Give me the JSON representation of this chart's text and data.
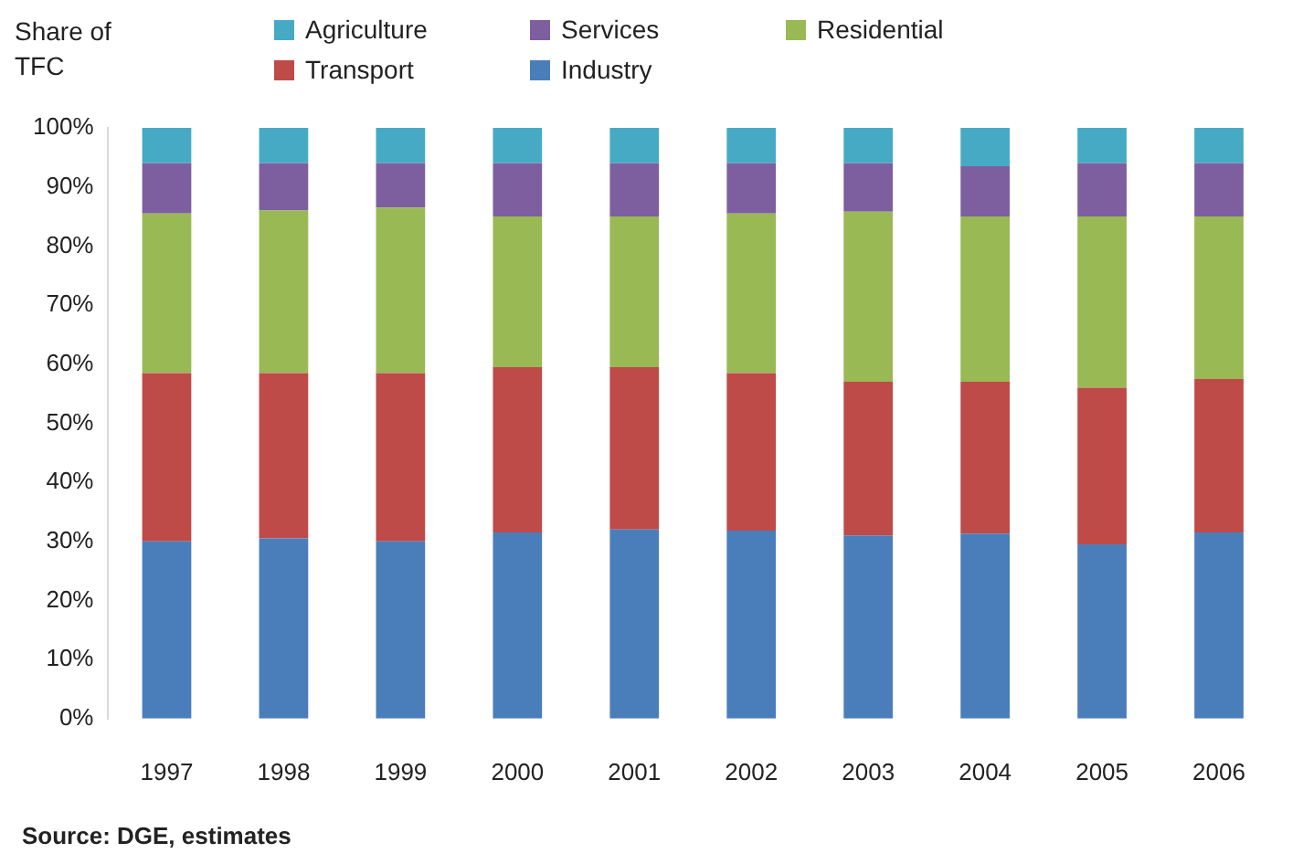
{
  "chart_data": {
    "type": "bar",
    "stacked": true,
    "ylabel": "Share of TFC",
    "categories": [
      "1997",
      "1998",
      "1999",
      "2000",
      "2001",
      "2002",
      "2003",
      "2004",
      "2005",
      "2006"
    ],
    "series": [
      {
        "name": "Industry",
        "color": "#4a7ebb",
        "values": [
          30,
          30.5,
          30,
          31.5,
          32,
          31.8,
          31,
          31.3,
          29.5,
          31.5
        ]
      },
      {
        "name": "Transport",
        "color": "#be4b48",
        "values": [
          28.5,
          28,
          28.5,
          28,
          27.5,
          26.7,
          26,
          25.7,
          26.5,
          26
        ]
      },
      {
        "name": "Residential",
        "color": "#98b954",
        "values": [
          27,
          27.5,
          28,
          25.5,
          25.5,
          27,
          28.8,
          28,
          29,
          27.5
        ]
      },
      {
        "name": "Services",
        "color": "#7d5fa0",
        "values": [
          8.5,
          8,
          7.5,
          9,
          9,
          8.5,
          8.2,
          8.5,
          9,
          9
        ]
      },
      {
        "name": "Agriculture",
        "color": "#46aac5",
        "values": [
          6,
          6,
          6,
          6,
          6,
          6,
          6,
          6.5,
          6,
          6
        ]
      }
    ],
    "ylim": [
      0,
      100
    ],
    "yticks": [
      {
        "value": 0,
        "label": "0%"
      },
      {
        "value": 10,
        "label": "10%"
      },
      {
        "value": 20,
        "label": "20%"
      },
      {
        "value": 30,
        "label": "30%"
      },
      {
        "value": 40,
        "label": "40%"
      },
      {
        "value": 50,
        "label": "50%"
      },
      {
        "value": 60,
        "label": "60%"
      },
      {
        "value": 70,
        "label": "70%"
      },
      {
        "value": 80,
        "label": "80%"
      },
      {
        "value": 90,
        "label": "90%"
      },
      {
        "value": 100,
        "label": "100%"
      }
    ],
    "grid": false,
    "legend": "top",
    "annotations": [
      "Source: DGE, estimates"
    ]
  }
}
